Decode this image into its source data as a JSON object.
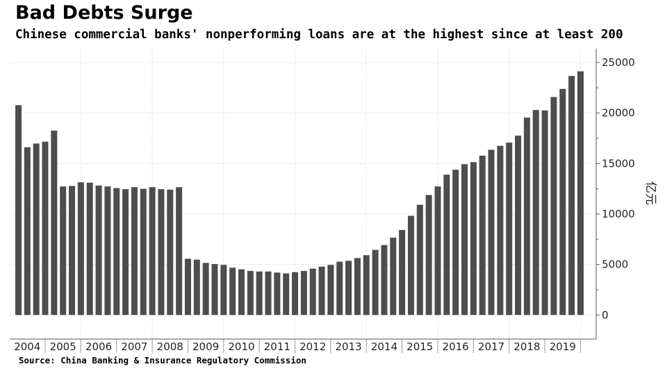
{
  "chart_data": {
    "type": "bar",
    "title": "Bad Debts Surge",
    "subtitle": "Chinese commercial banks' nonperforming loans are at the highest since at least 200",
    "source": "Source: China Banking & Insurance Regulatory Commission",
    "xlabel": "",
    "ylabel": "亿元",
    "ylim": [
      -2500,
      25000
    ],
    "yticks": [
      "25000",
      "20000",
      "15000",
      "10000",
      "5000",
      "0"
    ],
    "ytick_values": [
      25000,
      20000,
      15000,
      10000,
      5000,
      0
    ],
    "year_labels": [
      "2004",
      "2005",
      "2006",
      "2007",
      "2008",
      "2009",
      "2010",
      "2011",
      "2012",
      "2013",
      "2014",
      "2015",
      "2016",
      "2017",
      "2018",
      "2019"
    ],
    "bars_per_year": 4,
    "values": [
      20780,
      16610,
      16980,
      17160,
      18260,
      12730,
      12780,
      13140,
      13100,
      12820,
      12730,
      12570,
      12460,
      12660,
      12500,
      12660,
      12460,
      12410,
      12660,
      5570,
      5480,
      5160,
      5050,
      4960,
      4680,
      4520,
      4360,
      4310,
      4310,
      4200,
      4110,
      4240,
      4360,
      4590,
      4790,
      4960,
      5280,
      5370,
      5640,
      5920,
      6450,
      6930,
      7660,
      8420,
      9820,
      10920,
      11880,
      12730,
      13900,
      14380,
      14930,
      15140,
      15780,
      16360,
      16750,
      17070,
      17760,
      19550,
      20300,
      20260,
      21590,
      22390,
      23670,
      24130
    ],
    "bar_color": "#4d4d4d",
    "grid": true,
    "axis_position": "right"
  }
}
